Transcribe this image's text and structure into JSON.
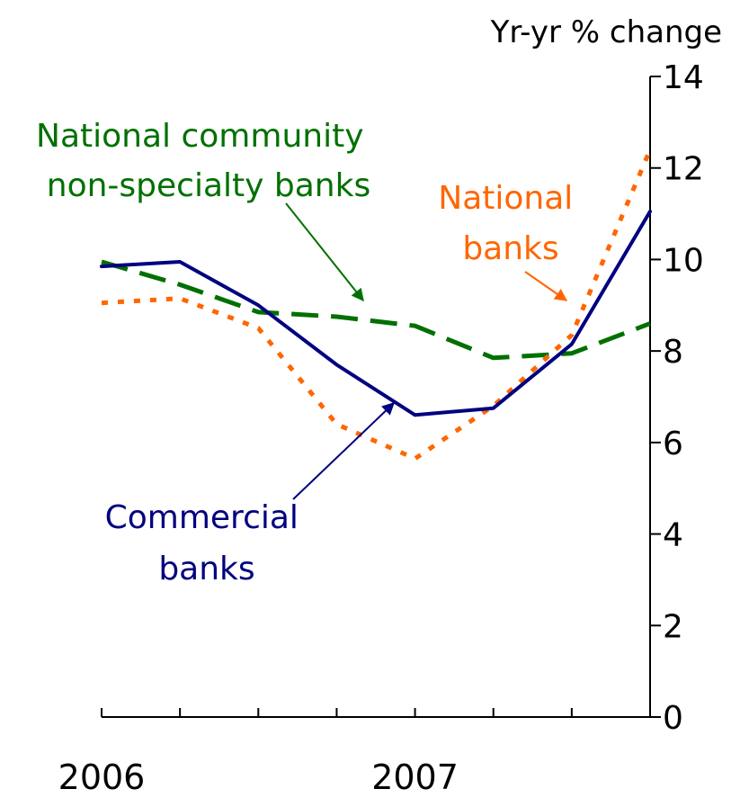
{
  "chart_data": {
    "type": "line",
    "ylabel": "Yr-yr % change",
    "ylim": [
      0,
      14
    ],
    "y_ticks": [
      0,
      2,
      4,
      6,
      8,
      10,
      12,
      14
    ],
    "y_axis_position": "right",
    "x_points": 8,
    "x_tick_labels": [
      {
        "index": 0,
        "label": "2006"
      },
      {
        "index": 4,
        "label": "2007"
      }
    ],
    "series": [
      {
        "name": "Commercial banks",
        "label_lines": [
          "Commercial",
          "banks"
        ],
        "color": "#000080",
        "style": "solid",
        "values": [
          9.85,
          9.95,
          9.0,
          7.7,
          6.6,
          6.75,
          8.15,
          11.05
        ]
      },
      {
        "name": "National banks",
        "label_lines": [
          "National",
          "banks"
        ],
        "color": "#FF6600",
        "style": "dotted",
        "values": [
          9.05,
          9.15,
          8.5,
          6.4,
          5.65,
          6.8,
          8.35,
          12.4
        ]
      },
      {
        "name": "National community non-specialty banks",
        "label_lines": [
          "National community",
          "non-specialty banks"
        ],
        "color": "#007000",
        "style": "dashed",
        "values": [
          9.95,
          9.45,
          8.85,
          8.75,
          8.55,
          7.85,
          7.95,
          8.6
        ]
      }
    ],
    "grid": false,
    "legend": "inline labels with arrows"
  }
}
